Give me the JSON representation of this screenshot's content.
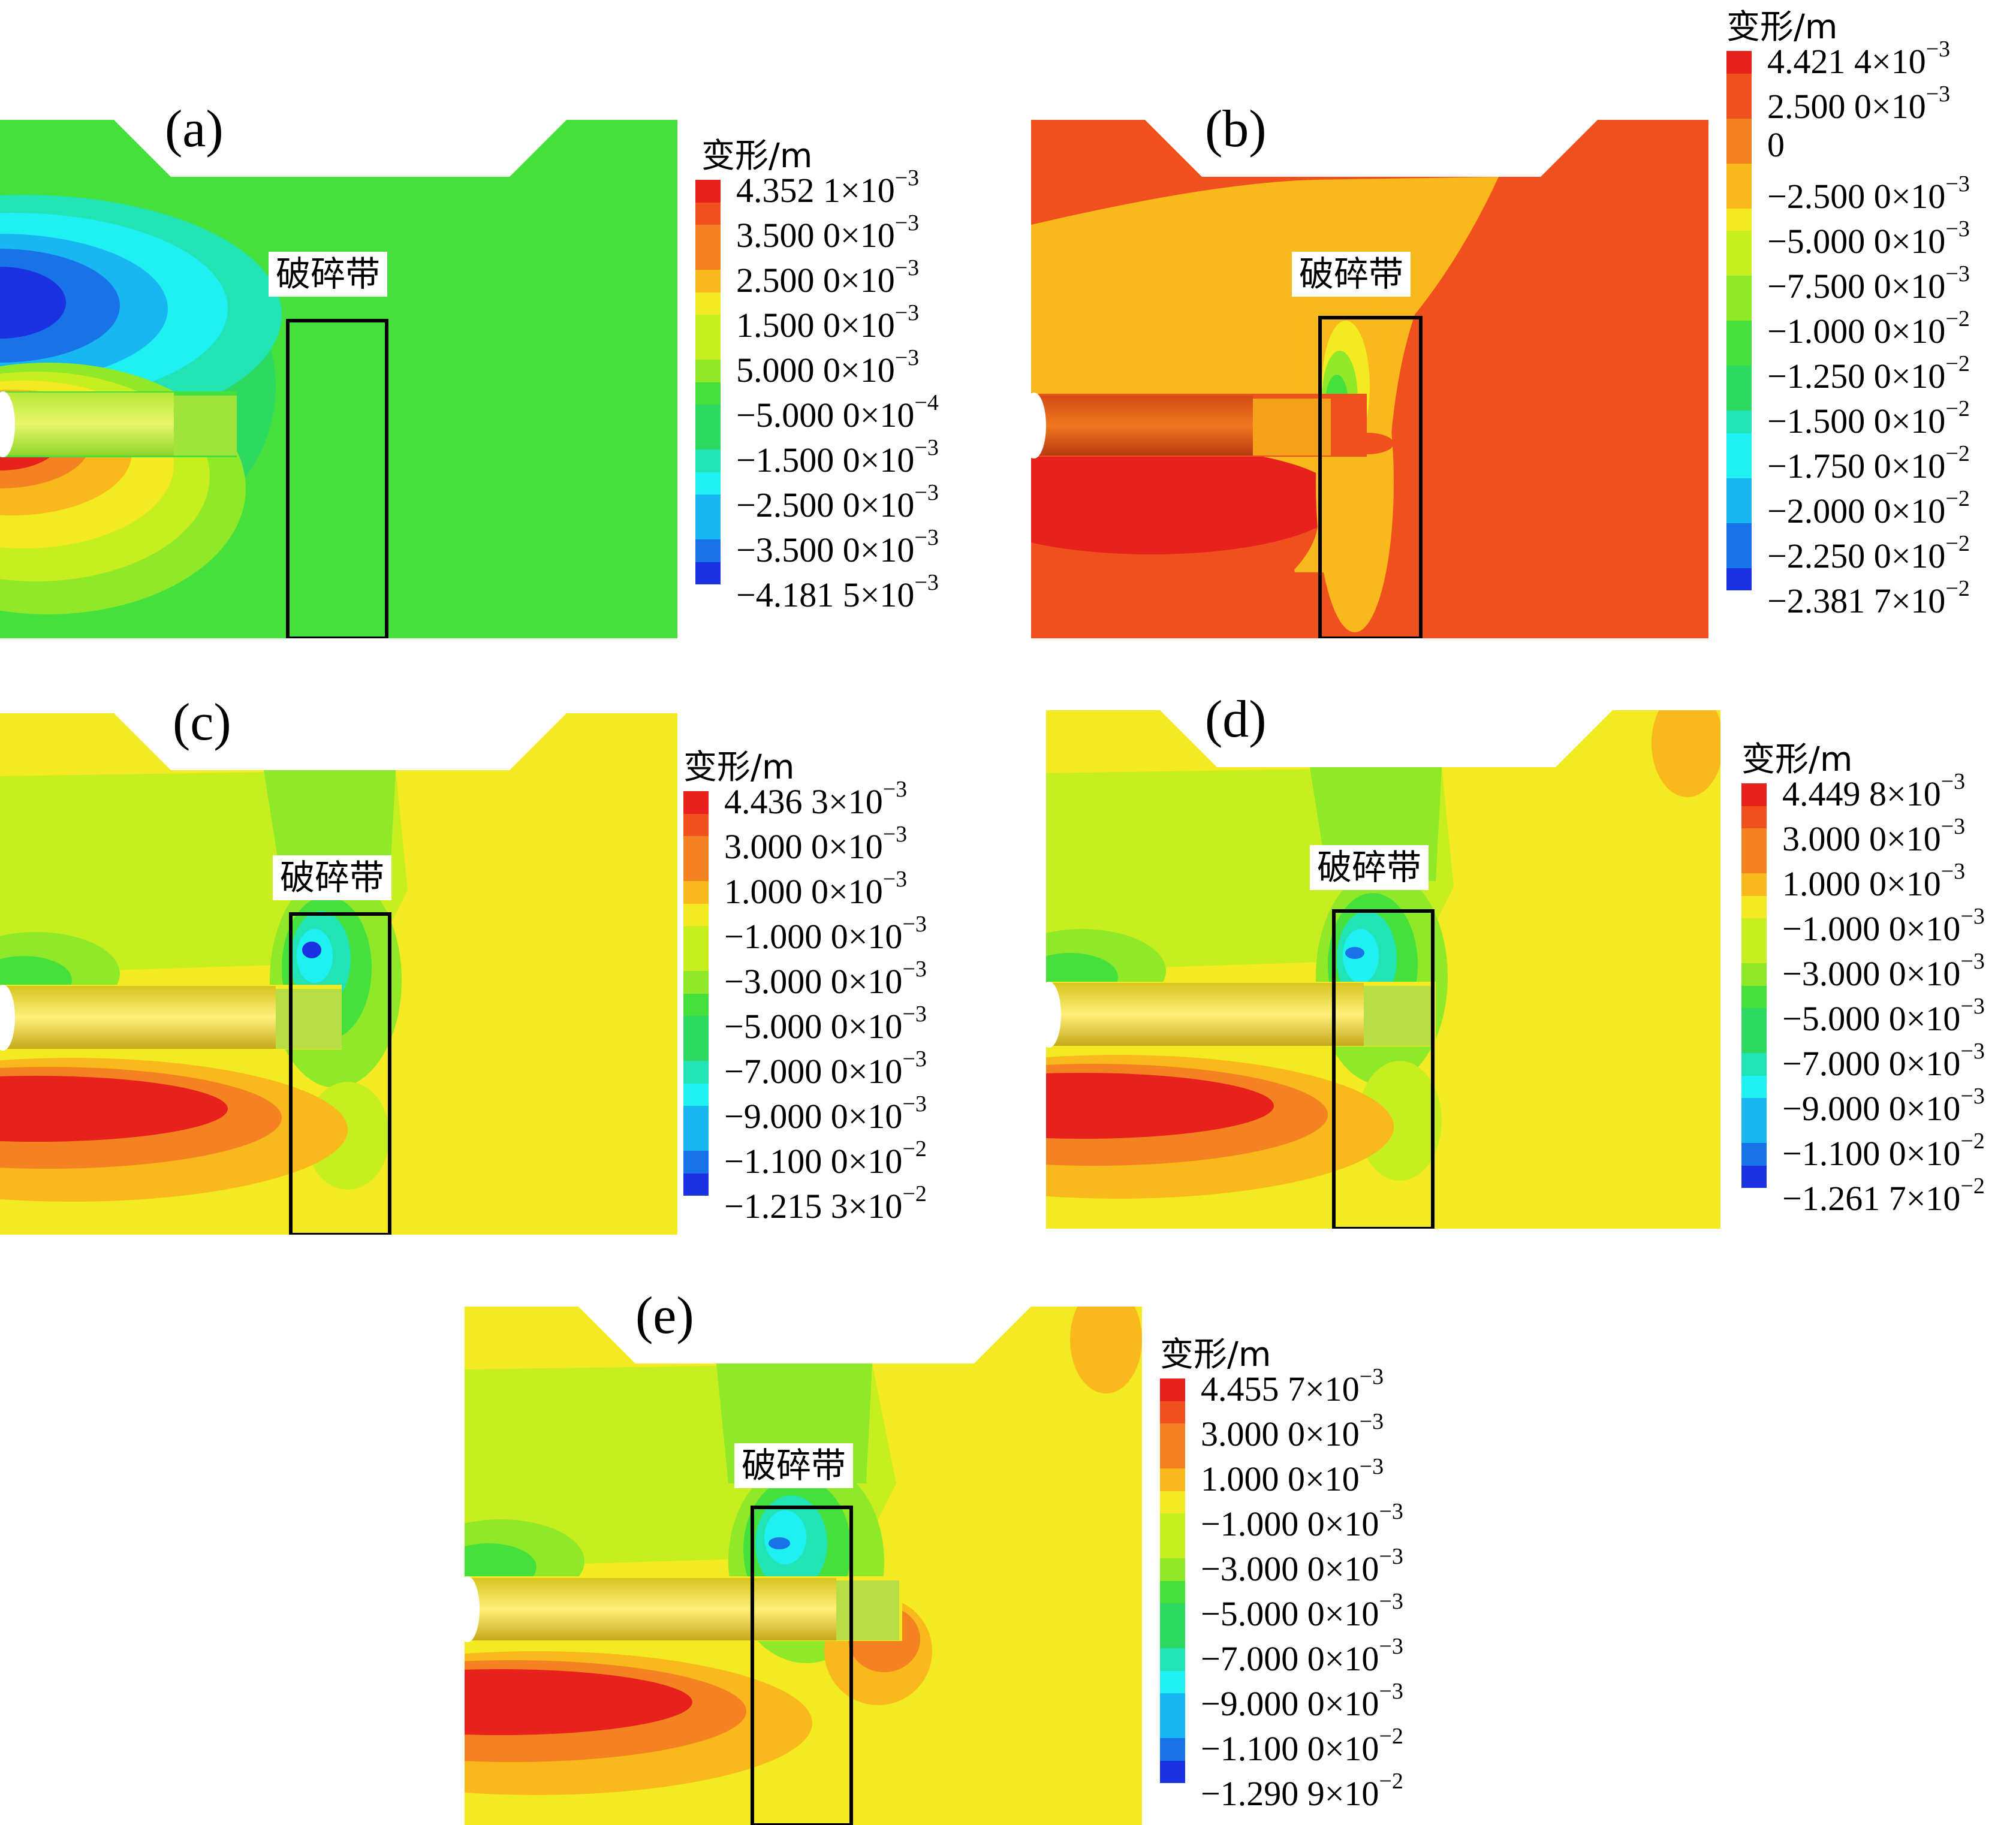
{
  "zone_label": "破碎带",
  "legend_title": "变形/m",
  "colors": {
    "red": "#e8211c",
    "orange_red": "#f0501e",
    "orange": "#f58220",
    "orange_yellow": "#f9b81b",
    "yellow": "#f3ea22",
    "yellow_green": "#c7ee1e",
    "light_green": "#8fe928",
    "green": "#45e03b",
    "green2": "#2ed962",
    "teal": "#21e3b6",
    "cyan": "#1ff0f2",
    "sky": "#19b7f2",
    "blue": "#1973e8",
    "deep_blue": "#1b32e2"
  },
  "panels": [
    {
      "id": "a",
      "label": "(a)",
      "legend": [
        {
          "m": "4.352 1",
          "e": "-3"
        },
        {
          "m": "3.500 0",
          "e": "-3"
        },
        {
          "m": "2.500 0",
          "e": "-3"
        },
        {
          "m": "1.500 0",
          "e": "-3"
        },
        {
          "m": "5.000 0",
          "e": "-3"
        },
        {
          "m": "-5.000 0",
          "e": "-4"
        },
        {
          "m": "-1.500 0",
          "e": "-3"
        },
        {
          "m": "-2.500 0",
          "e": "-3"
        },
        {
          "m": "-3.500 0",
          "e": "-3"
        },
        {
          "m": "-4.181 5",
          "e": "-3"
        }
      ]
    },
    {
      "id": "b",
      "label": "(b)",
      "legend": [
        {
          "m": "4.421 4",
          "e": "-3"
        },
        {
          "m": "2.500 0",
          "e": "-3"
        },
        {
          "m": "0",
          "e": ""
        },
        {
          "m": "-2.500 0",
          "e": "-3"
        },
        {
          "m": "-5.000 0",
          "e": "-3"
        },
        {
          "m": "-7.500 0",
          "e": "-3"
        },
        {
          "m": "-1.000 0",
          "e": "-2"
        },
        {
          "m": "-1.250 0",
          "e": "-2"
        },
        {
          "m": "-1.500 0",
          "e": "-2"
        },
        {
          "m": "-1.750 0",
          "e": "-2"
        },
        {
          "m": "-2.000 0",
          "e": "-2"
        },
        {
          "m": "-2.250 0",
          "e": "-2"
        },
        {
          "m": "-2.381 7",
          "e": "-2"
        }
      ]
    },
    {
      "id": "c",
      "label": "(c)",
      "legend": [
        {
          "m": "4.436 3",
          "e": "-3"
        },
        {
          "m": "3.000 0",
          "e": "-3"
        },
        {
          "m": "1.000 0",
          "e": "-3"
        },
        {
          "m": "-1.000 0",
          "e": "-3"
        },
        {
          "m": "-3.000 0",
          "e": "-3"
        },
        {
          "m": "-5.000 0",
          "e": "-3"
        },
        {
          "m": "-7.000 0",
          "e": "-3"
        },
        {
          "m": "-9.000 0",
          "e": "-3"
        },
        {
          "m": "-1.100 0",
          "e": "-2"
        },
        {
          "m": "-1.215 3",
          "e": "-2"
        }
      ]
    },
    {
      "id": "d",
      "label": "(d)",
      "legend": [
        {
          "m": "4.449 8",
          "e": "-3"
        },
        {
          "m": "3.000 0",
          "e": "-3"
        },
        {
          "m": "1.000 0",
          "e": "-3"
        },
        {
          "m": "-1.000 0",
          "e": "-3"
        },
        {
          "m": "-3.000 0",
          "e": "-3"
        },
        {
          "m": "-5.000 0",
          "e": "-3"
        },
        {
          "m": "-7.000 0",
          "e": "-3"
        },
        {
          "m": "-9.000 0",
          "e": "-3"
        },
        {
          "m": "-1.100 0",
          "e": "-2"
        },
        {
          "m": "-1.261 7",
          "e": "-2"
        }
      ]
    },
    {
      "id": "e",
      "label": "(e)",
      "legend": [
        {
          "m": "4.455 7",
          "e": "-3"
        },
        {
          "m": "3.000 0",
          "e": "-3"
        },
        {
          "m": "1.000 0",
          "e": "-3"
        },
        {
          "m": "-1.000 0",
          "e": "-3"
        },
        {
          "m": "-3.000 0",
          "e": "-3"
        },
        {
          "m": "-5.000 0",
          "e": "-3"
        },
        {
          "m": "-7.000 0",
          "e": "-3"
        },
        {
          "m": "-9.000 0",
          "e": "-3"
        },
        {
          "m": "-1.100 0",
          "e": "-2"
        },
        {
          "m": "-1.290 9",
          "e": "-2"
        }
      ]
    }
  ]
}
